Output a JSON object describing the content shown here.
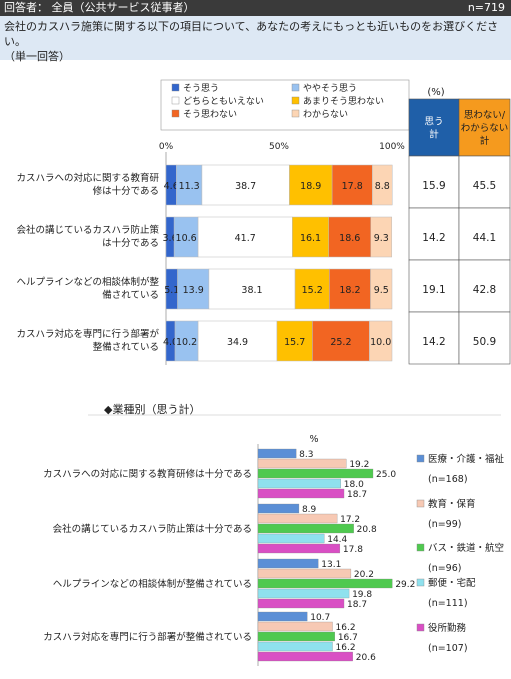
{
  "header": {
    "respondents": "回答者： 全員（公共サービス従事者）",
    "n": "n=719"
  },
  "question": {
    "line1": "会社のカスハラ施策に関する以下の項目について、あなたの考えにもっとも近いものをお選びください。",
    "line2": "（単一回答）"
  },
  "chart_data": [
    {
      "type": "bar",
      "stacked": "100%",
      "orientation": "horizontal",
      "xlim": [
        0,
        100
      ],
      "tick_labels": [
        "0%",
        "50%",
        "100%"
      ],
      "legend_position": "top",
      "categories": [
        [
          "カスハラへの対応に関する教育研",
          "修は十分である"
        ],
        [
          "会社の講じているカスハラ防止策",
          "は十分である"
        ],
        [
          "ヘルプラインなどの相談体制が整",
          "備されている"
        ],
        [
          "カスハラ対応を専門に行う部署が",
          "整備されている"
        ]
      ],
      "series": [
        {
          "name": "そう思う",
          "color": "#3366cc",
          "values": [
            4.6,
            3.6,
            5.1,
            4.0
          ],
          "labels": [
            "4.6",
            "3.6",
            "5.1",
            "4.0"
          ]
        },
        {
          "name": "ややそう思う",
          "color": "#99c2f0",
          "values": [
            11.3,
            10.6,
            13.9,
            10.2
          ],
          "labels": [
            "11.3",
            "10.6",
            "13.9",
            "10.2"
          ]
        },
        {
          "name": "どちらともいえない",
          "color": "#ffffff",
          "values": [
            38.7,
            41.7,
            38.1,
            34.9
          ],
          "labels": [
            "38.7",
            "41.7",
            "38.1",
            "34.9"
          ]
        },
        {
          "name": "あまりそう思わない",
          "color": "#ffc000",
          "values": [
            18.9,
            16.1,
            15.2,
            15.7
          ],
          "labels": [
            "18.9",
            "16.1",
            "15.2",
            "15.7"
          ]
        },
        {
          "name": "そう思わない",
          "color": "#f26522",
          "values": [
            17.8,
            18.6,
            18.2,
            25.2
          ],
          "labels": [
            "17.8",
            "18.6",
            "18.2",
            "25.2"
          ]
        },
        {
          "name": "わからない",
          "color": "#fcd5b4",
          "values": [
            8.8,
            9.3,
            9.5,
            10.0
          ],
          "labels": [
            "8.8",
            "9.3",
            "9.5",
            "10.0"
          ]
        }
      ],
      "summary_table": {
        "unit": "(%)",
        "columns": [
          {
            "header": [
              "思う",
              "計"
            ],
            "color": "#1f5fa8",
            "values": [
              "15.9",
              "14.2",
              "19.1",
              "14.2"
            ]
          },
          {
            "header": [
              "思わない/",
              "わからない",
              "計"
            ],
            "color": "#f59a1e",
            "values": [
              "45.5",
              "44.1",
              "42.8",
              "50.9"
            ]
          }
        ]
      }
    },
    {
      "type": "bar",
      "orientation": "horizontal",
      "title": "◆業種別（思う計）",
      "unit": "%",
      "xlim": [
        0,
        30
      ],
      "legend_position": "right",
      "categories": [
        "カスハラへの対応に関する教育研修は十分である",
        "会社の講じているカスハラ防止策は十分である",
        "ヘルプラインなどの相談体制が整備されている",
        "カスハラ対応を専門に行う部署が整備されている"
      ],
      "series": [
        {
          "name": "医療・介護・福祉",
          "n": "(n=168)",
          "color": "#5b8fd6",
          "values": [
            8.3,
            8.9,
            13.1,
            10.7
          ],
          "labels": [
            "8.3",
            "8.9",
            "13.1",
            "10.7"
          ]
        },
        {
          "name": "教育・保育",
          "n": "(n=99)",
          "color": "#f7c9b4",
          "values": [
            19.2,
            17.2,
            20.2,
            16.2
          ],
          "labels": [
            "19.2",
            "17.2",
            "20.2",
            "16.2"
          ]
        },
        {
          "name": "バス・鉄道・航空",
          "n": "(n=96)",
          "color": "#4fc94f",
          "values": [
            25.0,
            20.8,
            29.2,
            16.7
          ],
          "labels": [
            "25.0",
            "20.8",
            "29.2",
            "16.7"
          ]
        },
        {
          "name": "郵便・宅配",
          "n": "(n=111)",
          "color": "#8fe1ee",
          "values": [
            18.0,
            14.4,
            19.8,
            16.2
          ],
          "labels": [
            "18.0",
            "14.4",
            "19.8",
            "16.2"
          ]
        },
        {
          "name": "役所勤務",
          "n": "(n=107)",
          "color": "#d94fc4",
          "values": [
            18.7,
            17.8,
            18.7,
            20.6
          ],
          "labels": [
            "18.7",
            "17.8",
            "18.7",
            "20.6"
          ]
        }
      ]
    }
  ]
}
